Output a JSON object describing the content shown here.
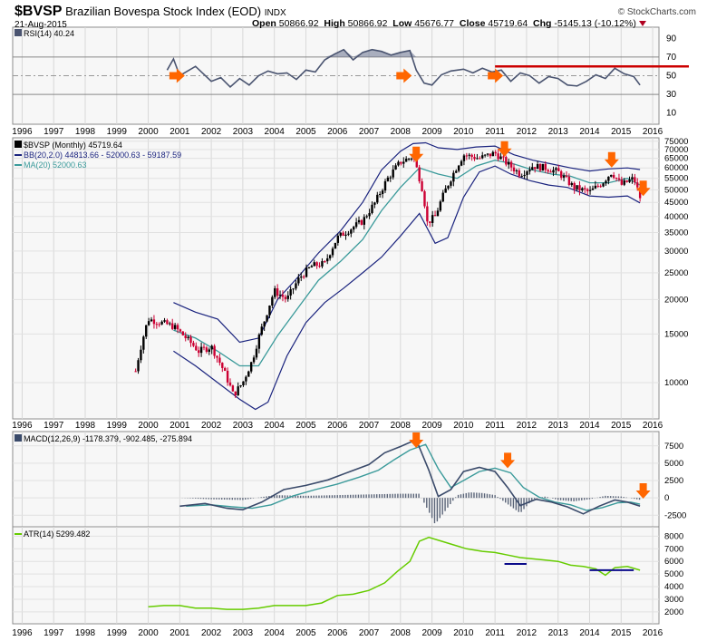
{
  "header": {
    "symbol": "$BVSP",
    "name": "Brazilian Bovespa Stock Index (EOD)",
    "exchange": "INDX",
    "date": "21-Aug-2015",
    "brand": "© StockCharts.com",
    "open_label": "Open",
    "open": "50866.92",
    "high_label": "High",
    "high": "50866.92",
    "low_label": "Low",
    "low": "45676.77",
    "close_label": "Close",
    "close": "45719.64",
    "chg_label": "Chg",
    "chg": "-5145.13 (-10.12%)"
  },
  "colors": {
    "up": "#000000",
    "down": "#cc0033",
    "bb": "#1a237e",
    "ma": "#3a9a9a",
    "rsi": "#4a5470",
    "macd": "#3a4a6a",
    "signal": "#3a9a9a",
    "atr": "#66cc00",
    "arrow": "#ff6600",
    "redline": "#cc0000",
    "hline": "#0a0a8a"
  },
  "chart_data": [
    {
      "type": "line",
      "title": "RSI(14) 40.24",
      "legend": "RSI(14) 40.24",
      "ylim": [
        0,
        100
      ],
      "yticks": [
        10,
        30,
        50,
        70,
        90
      ],
      "x": [
        2000.6,
        2000.8,
        2001.0,
        2001.5,
        2002.0,
        2002.3,
        2002.6,
        2002.9,
        2003.2,
        2003.5,
        2003.8,
        2004.1,
        2004.4,
        2004.7,
        2005.0,
        2005.3,
        2005.6,
        2005.9,
        2006.2,
        2006.5,
        2006.8,
        2007.1,
        2007.4,
        2007.7,
        2008.0,
        2008.3,
        2008.5,
        2008.75,
        2009.0,
        2009.3,
        2009.6,
        2010.0,
        2010.3,
        2010.6,
        2010.9,
        2011.2,
        2011.5,
        2011.8,
        2012.1,
        2012.4,
        2012.7,
        2013.0,
        2013.3,
        2013.6,
        2013.9,
        2014.2,
        2014.5,
        2014.8,
        2015.1,
        2015.4,
        2015.6
      ],
      "values": [
        56,
        68,
        50,
        60,
        44,
        48,
        38,
        47,
        40,
        50,
        55,
        52,
        53,
        46,
        56,
        54,
        67,
        73,
        78,
        67,
        75,
        78,
        76,
        72,
        75,
        77,
        56,
        42,
        40,
        51,
        55,
        57,
        53,
        58,
        54,
        56,
        44,
        53,
        50,
        42,
        49,
        47,
        40,
        39,
        44,
        51,
        47,
        58,
        52,
        49,
        40
      ],
      "annotations": {
        "red_level": 60,
        "arrows_x": [
          2000.9,
          2008.1,
          2011.0
        ]
      }
    },
    {
      "type": "candlestick",
      "title": "$BVSP (Monthly) 45719.64",
      "legend": [
        "$BVSP (Monthly) 45719.64",
        "BB(20,2.0) 44813.66 - 52000.63 - 59187.59",
        "MA(20) 52000.63"
      ],
      "x_ticks": [
        "1996",
        "1997",
        "1998",
        "1999",
        "2000",
        "2001",
        "2002",
        "2003",
        "2004",
        "2005",
        "2006",
        "2007",
        "2008",
        "2009",
        "2010",
        "2011",
        "2012",
        "2013",
        "2014",
        "2015",
        "2016"
      ],
      "ylim": [
        7500,
        76000
      ],
      "scale": "log",
      "yticks": [
        10000,
        15000,
        20000,
        25000,
        30000,
        35000,
        40000,
        45000,
        50000,
        55000,
        60000,
        65000,
        70000,
        75000
      ],
      "price": {
        "x": [
          1999.6,
          2000.0,
          2000.4,
          2000.8,
          2001.2,
          2001.6,
          2002.0,
          2002.4,
          2002.7,
          2003.0,
          2003.3,
          2003.7,
          2004.0,
          2004.4,
          2004.8,
          2005.2,
          2005.6,
          2006.0,
          2006.4,
          2006.8,
          2007.2,
          2007.6,
          2008.0,
          2008.4,
          2008.7,
          2008.85,
          2009.1,
          2009.5,
          2010.0,
          2010.5,
          2011.0,
          2011.4,
          2011.8,
          2012.2,
          2012.6,
          2013.0,
          2013.5,
          2014.0,
          2014.4,
          2014.7,
          2015.0,
          2015.4,
          2015.63
        ],
        "values": [
          11000,
          17000,
          16500,
          16000,
          14500,
          13000,
          13500,
          11000,
          9000,
          10000,
          12000,
          17000,
          21500,
          20000,
          24000,
          26500,
          27000,
          33500,
          36000,
          38500,
          45000,
          55000,
          63000,
          66000,
          50000,
          38000,
          40000,
          52000,
          67000,
          65000,
          68000,
          62000,
          57000,
          61000,
          60000,
          58000,
          51000,
          49000,
          53000,
          58000,
          52000,
          55000,
          45700
        ]
      },
      "ma": {
        "x": [
          2000.8,
          2001.5,
          2002.2,
          2002.9,
          2003.5,
          2004.1,
          2004.8,
          2005.4,
          2006.1,
          2006.8,
          2007.4,
          2008.0,
          2008.6,
          2009.2,
          2009.8,
          2010.4,
          2011.0,
          2011.6,
          2012.2,
          2012.8,
          2013.4,
          2014.0,
          2014.6,
          2015.2,
          2015.6
        ],
        "values": [
          15500,
          14500,
          13000,
          11500,
          11500,
          14800,
          19000,
          23500,
          27500,
          33000,
          42000,
          51000,
          60000,
          57000,
          55000,
          61000,
          64000,
          62000,
          59000,
          57000,
          56000,
          53000,
          53000,
          55000,
          52000
        ]
      },
      "bb_upper": {
        "x": [
          2000.8,
          2001.5,
          2002.2,
          2002.9,
          2003.5,
          2004.1,
          2004.8,
          2005.4,
          2006.1,
          2006.8,
          2007.4,
          2008.0,
          2008.4,
          2008.8,
          2009.2,
          2009.8,
          2010.4,
          2011.0,
          2011.6,
          2012.2,
          2012.8,
          2013.4,
          2014.0,
          2014.6,
          2015.2,
          2015.6
        ],
        "values": [
          19500,
          18000,
          17000,
          14000,
          14500,
          20000,
          24500,
          29500,
          35500,
          45000,
          59000,
          69000,
          73500,
          74000,
          71000,
          70000,
          71500,
          72000,
          67000,
          64000,
          62000,
          60000,
          58500,
          59500,
          60000,
          59200
        ]
      },
      "bb_lower": {
        "x": [
          2000.8,
          2001.5,
          2002.2,
          2002.9,
          2003.4,
          2003.8,
          2004.4,
          2005.0,
          2005.6,
          2006.2,
          2006.8,
          2007.4,
          2008.0,
          2008.6,
          2009.1,
          2009.5,
          2010.0,
          2010.5,
          2011.0,
          2011.5,
          2012.1,
          2012.7,
          2013.3,
          2014.0,
          2014.6,
          2015.2,
          2015.6
        ],
        "values": [
          13000,
          11500,
          10000,
          8700,
          8000,
          8500,
          12500,
          16500,
          19500,
          22000,
          25000,
          28500,
          34000,
          41000,
          32000,
          33500,
          47000,
          58000,
          61000,
          57000,
          54000,
          52000,
          51000,
          47500,
          47000,
          47500,
          44800
        ]
      },
      "annotations": {
        "arrows_x": [
          2008.5,
          2011.3,
          2014.7,
          2015.7
        ]
      }
    },
    {
      "type": "line",
      "title": "MACD(12,26,9) -1178.379, -902.485, -275.894",
      "legend": "MACD(12,26,9) -1178.379, -902.485, -275.894",
      "ylim": [
        -3900,
        9300
      ],
      "yticks": [
        -2500,
        0,
        2500,
        5000,
        7500
      ],
      "series": [
        {
          "name": "MACD",
          "x": [
            2001.0,
            2001.8,
            2002.5,
            2003.0,
            2003.6,
            2004.3,
            2005.0,
            2005.7,
            2006.4,
            2007.0,
            2007.5,
            2008.0,
            2008.5,
            2008.9,
            2009.2,
            2009.6,
            2010.0,
            2010.5,
            2011.0,
            2011.4,
            2011.8,
            2012.3,
            2012.8,
            2013.3,
            2013.8,
            2014.3,
            2014.8,
            2015.2,
            2015.6
          ],
          "values": [
            -1200,
            -800,
            -1500,
            -1700,
            -600,
            1200,
            1800,
            2600,
            3800,
            4800,
            6500,
            7400,
            8400,
            4000,
            200,
            1200,
            3800,
            4400,
            3800,
            1500,
            -1100,
            -200,
            -600,
            -1300,
            -2300,
            -1200,
            -300,
            -600,
            -1178
          ]
        },
        {
          "name": "Signal",
          "x": [
            2001.2,
            2002.0,
            2002.7,
            2003.3,
            2003.9,
            2004.6,
            2005.3,
            2006.0,
            2006.7,
            2007.3,
            2007.8,
            2008.3,
            2008.8,
            2009.2,
            2009.6,
            2010.0,
            2010.5,
            2011.0,
            2011.5,
            2011.9,
            2012.4,
            2012.9,
            2013.4,
            2013.9,
            2014.4,
            2014.9,
            2015.3,
            2015.6
          ],
          "values": [
            -1200,
            -1000,
            -1300,
            -1500,
            -1000,
            300,
            1200,
            2000,
            3000,
            4000,
            5500,
            6900,
            7700,
            4200,
            1500,
            2500,
            3800,
            4300,
            3600,
            1500,
            100,
            -600,
            -1000,
            -1800,
            -1400,
            -700,
            -600,
            -902
          ]
        },
        {
          "name": "Histogram",
          "x": [
            2001.0,
            2002.0,
            2003.0,
            2004.0,
            2005.0,
            2006.0,
            2007.0,
            2008.0,
            2008.6,
            2008.9,
            2009.1,
            2009.4,
            2009.8,
            2010.2,
            2010.6,
            2011.0,
            2011.4,
            2011.8,
            2012.2,
            2012.6,
            2013.0,
            2013.5,
            2014.0,
            2014.5,
            2015.0,
            2015.6
          ],
          "values": [
            0,
            -200,
            -300,
            400,
            300,
            400,
            500,
            600,
            600,
            -2000,
            -3800,
            -2000,
            400,
            800,
            700,
            400,
            -900,
            -2200,
            -200,
            200,
            -300,
            -500,
            -200,
            300,
            200,
            -276
          ]
        }
      ],
      "annotations": {
        "arrows_x": [
          2008.5,
          2011.4,
          2015.7
        ]
      }
    },
    {
      "type": "line",
      "title": "ATR(14) 5299.482",
      "legend": "ATR(14) 5299.482",
      "ylim": [
        1200,
        8600
      ],
      "yticks": [
        2000,
        3000,
        4000,
        5000,
        6000,
        7000,
        8000
      ],
      "x": [
        2000.0,
        2000.5,
        2001.0,
        2001.5,
        2002.0,
        2002.5,
        2003.0,
        2003.5,
        2004.0,
        2004.5,
        2005.0,
        2005.5,
        2006.0,
        2006.5,
        2007.0,
        2007.5,
        2007.9,
        2008.3,
        2008.6,
        2008.9,
        2009.3,
        2009.7,
        2010.1,
        2010.6,
        2011.0,
        2011.4,
        2011.8,
        2012.2,
        2012.6,
        2013.0,
        2013.4,
        2013.8,
        2014.2,
        2014.5,
        2014.8,
        2015.2,
        2015.6
      ],
      "values": [
        2400,
        2500,
        2500,
        2300,
        2300,
        2200,
        2200,
        2300,
        2500,
        2500,
        2500,
        2700,
        3300,
        3400,
        3700,
        4300,
        5200,
        6000,
        7600,
        7900,
        7600,
        7300,
        7000,
        6800,
        6700,
        6500,
        6300,
        6200,
        6100,
        6000,
        5700,
        5600,
        5400,
        4900,
        5500,
        5600,
        5300
      ],
      "annotations": {
        "level_segments": [
          {
            "from": 2011.3,
            "to": 2012.0,
            "value": 5800
          },
          {
            "from": 2014.0,
            "to": 2015.4,
            "value": 5300
          }
        ]
      }
    }
  ]
}
